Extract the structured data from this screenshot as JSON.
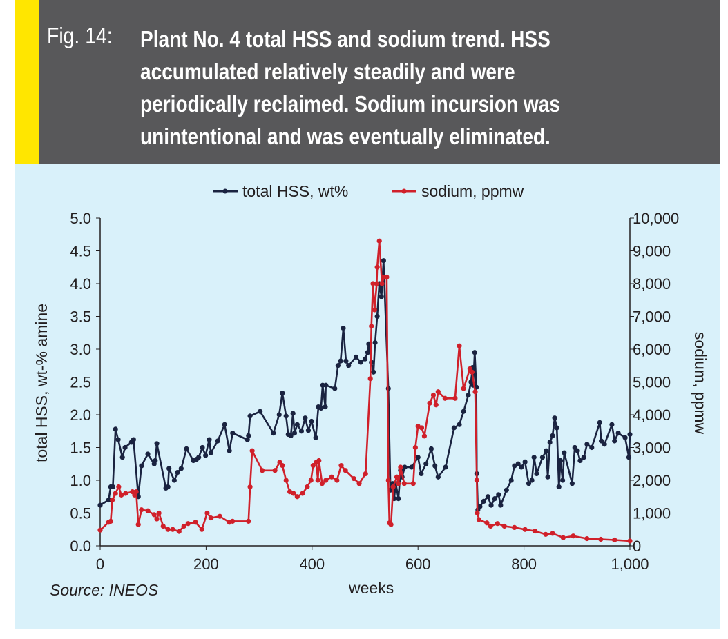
{
  "header": {
    "fig_label": "Fig. 14:",
    "caption_lines": [
      "Plant No. 4 total HSS and sodium trend. HSS",
      "accumulated relatively steadily and were",
      "periodically reclaimed. Sodium incursion was",
      "unintentional and was eventually eliminated."
    ]
  },
  "source": "Source: INEOS",
  "colors": {
    "hss": "#1a2340",
    "sodium": "#d0202a",
    "panel": "#d9f1fa",
    "header": "#58585a",
    "stripe": "#ffe600"
  },
  "chart_data": {
    "type": "line",
    "xlabel": "weeks",
    "ylabel": "total HSS, wt-% amine",
    "y2label": "sodium, ppmw",
    "xlim": [
      0,
      1000
    ],
    "ylim": [
      0,
      5
    ],
    "y2lim": [
      0,
      10000
    ],
    "xticks": [
      "0",
      "200",
      "400",
      "600",
      "800",
      "1,000"
    ],
    "yticks": [
      "0.0",
      "0.5",
      "1.0",
      "1.5",
      "2.0",
      "2.5",
      "3.0",
      "3.5",
      "4.0",
      "4.5",
      "5.0"
    ],
    "y2ticks": [
      "0",
      "1,000",
      "2,000",
      "3,000",
      "4,000",
      "5,000",
      "6,000",
      "7,000",
      "8,000",
      "9,000",
      "10,000"
    ],
    "legend_position": "top-center",
    "series": [
      {
        "name": "total HSS, wt%",
        "axis": "left",
        "color": "#1a2340",
        "points": [
          [
            0,
            0.62
          ],
          [
            16,
            0.7
          ],
          [
            20,
            0.9
          ],
          [
            24,
            0.9
          ],
          [
            29,
            1.78
          ],
          [
            34,
            1.62
          ],
          [
            42,
            1.35
          ],
          [
            47,
            1.5
          ],
          [
            59,
            1.58
          ],
          [
            63,
            1.62
          ],
          [
            72,
            0.75
          ],
          [
            78,
            1.22
          ],
          [
            90,
            1.4
          ],
          [
            102,
            1.25
          ],
          [
            104,
            1.3
          ],
          [
            107,
            1.56
          ],
          [
            124,
            0.88
          ],
          [
            128,
            0.9
          ],
          [
            130,
            1.18
          ],
          [
            140,
            1.0
          ],
          [
            146,
            1.12
          ],
          [
            153,
            1.18
          ],
          [
            163,
            1.48
          ],
          [
            176,
            1.3
          ],
          [
            182,
            1.32
          ],
          [
            186,
            1.35
          ],
          [
            193,
            1.5
          ],
          [
            199,
            1.38
          ],
          [
            206,
            1.62
          ],
          [
            209,
            1.42
          ],
          [
            222,
            1.6
          ],
          [
            235,
            1.85
          ],
          [
            244,
            1.45
          ],
          [
            250,
            1.72
          ],
          [
            278,
            1.62
          ],
          [
            280,
            1.68
          ],
          [
            283,
            1.98
          ],
          [
            302,
            2.05
          ],
          [
            327,
            1.72
          ],
          [
            338,
            2.0
          ],
          [
            344,
            2.33
          ],
          [
            351,
            1.98
          ],
          [
            355,
            1.7
          ],
          [
            360,
            1.68
          ],
          [
            364,
            2.02
          ],
          [
            367,
            1.72
          ],
          [
            372,
            1.85
          ],
          [
            380,
            1.75
          ],
          [
            387,
            1.95
          ],
          [
            393,
            1.76
          ],
          [
            399,
            1.9
          ],
          [
            407,
            1.65
          ],
          [
            412,
            2.12
          ],
          [
            417,
            2.1
          ],
          [
            420,
            2.45
          ],
          [
            425,
            2.12
          ],
          [
            426,
            2.45
          ],
          [
            443,
            2.4
          ],
          [
            449,
            2.75
          ],
          [
            454,
            2.82
          ],
          [
            459,
            3.32
          ],
          [
            464,
            2.82
          ],
          [
            469,
            2.75
          ],
          [
            483,
            2.88
          ],
          [
            492,
            2.8
          ],
          [
            500,
            2.85
          ],
          [
            505,
            2.95
          ],
          [
            507,
            3.08
          ],
          [
            512,
            2.8
          ],
          [
            516,
            2.65
          ],
          [
            519,
            3.1
          ],
          [
            523,
            3.5
          ],
          [
            527,
            4.0
          ],
          [
            531,
            3.8
          ],
          [
            535,
            4.35
          ],
          [
            544,
            2.4
          ],
          [
            548,
            0.85
          ],
          [
            552,
            0.95
          ],
          [
            555,
            0.72
          ],
          [
            558,
            0.95
          ],
          [
            563,
            0.72
          ],
          [
            567,
            1.15
          ],
          [
            570,
            1.05
          ],
          [
            575,
            1.2
          ],
          [
            588,
            1.2
          ],
          [
            600,
            1.35
          ],
          [
            606,
            1.1
          ],
          [
            615,
            1.25
          ],
          [
            625,
            1.48
          ],
          [
            632,
            1.22
          ],
          [
            638,
            1.05
          ],
          [
            652,
            1.2
          ],
          [
            668,
            1.8
          ],
          [
            678,
            1.85
          ],
          [
            686,
            2.05
          ],
          [
            695,
            2.3
          ],
          [
            700,
            2.5
          ],
          [
            703,
            2.72
          ],
          [
            704,
            2.45
          ],
          [
            707,
            2.95
          ],
          [
            710,
            2.42
          ],
          [
            711,
            1.1
          ],
          [
            713,
            0.55
          ],
          [
            717,
            0.6
          ],
          [
            724,
            0.68
          ],
          [
            732,
            0.75
          ],
          [
            738,
            0.62
          ],
          [
            745,
            0.72
          ],
          [
            752,
            0.78
          ],
          [
            756,
            0.62
          ],
          [
            767,
            0.85
          ],
          [
            776,
            1.0
          ],
          [
            782,
            1.22
          ],
          [
            789,
            1.25
          ],
          [
            795,
            1.2
          ],
          [
            802,
            1.28
          ],
          [
            809,
            0.95
          ],
          [
            815,
            1.0
          ],
          [
            819,
            1.35
          ],
          [
            824,
            1.1
          ],
          [
            835,
            1.35
          ],
          [
            842,
            1.45
          ],
          [
            845,
            1.05
          ],
          [
            849,
            1.58
          ],
          [
            854,
            1.68
          ],
          [
            858,
            1.95
          ],
          [
            862,
            1.8
          ],
          [
            866,
            0.9
          ],
          [
            869,
            1.3
          ],
          [
            873,
            1.0
          ],
          [
            876,
            1.42
          ],
          [
            891,
            0.95
          ],
          [
            896,
            1.5
          ],
          [
            901,
            1.45
          ],
          [
            906,
            1.3
          ],
          [
            913,
            1.35
          ],
          [
            919,
            1.55
          ],
          [
            928,
            1.5
          ],
          [
            943,
            1.88
          ],
          [
            946,
            1.6
          ],
          [
            952,
            1.55
          ],
          [
            966,
            1.85
          ],
          [
            971,
            1.6
          ],
          [
            978,
            1.72
          ],
          [
            991,
            1.65
          ],
          [
            998,
            1.35
          ],
          [
            1000,
            1.7
          ]
        ]
      },
      {
        "name": "sodium, ppmw",
        "axis": "right",
        "color": "#d0202a",
        "points": [
          [
            0,
            480
          ],
          [
            16,
            720
          ],
          [
            20,
            750
          ],
          [
            23,
            1400
          ],
          [
            29,
            1600
          ],
          [
            35,
            1800
          ],
          [
            40,
            1550
          ],
          [
            48,
            1600
          ],
          [
            61,
            1650
          ],
          [
            65,
            1550
          ],
          [
            68,
            1650
          ],
          [
            72,
            650
          ],
          [
            78,
            1100
          ],
          [
            90,
            1070
          ],
          [
            102,
            950
          ],
          [
            107,
            820
          ],
          [
            111,
            1000
          ],
          [
            119,
            600
          ],
          [
            128,
            500
          ],
          [
            137,
            500
          ],
          [
            149,
            440
          ],
          [
            158,
            600
          ],
          [
            166,
            680
          ],
          [
            180,
            720
          ],
          [
            192,
            500
          ],
          [
            202,
            1000
          ],
          [
            209,
            850
          ],
          [
            226,
            900
          ],
          [
            244,
            720
          ],
          [
            250,
            750
          ],
          [
            280,
            750
          ],
          [
            283,
            1800
          ],
          [
            287,
            2900
          ],
          [
            306,
            2300
          ],
          [
            330,
            2300
          ],
          [
            339,
            2550
          ],
          [
            344,
            2450
          ],
          [
            351,
            2000
          ],
          [
            358,
            1650
          ],
          [
            365,
            1600
          ],
          [
            372,
            1500
          ],
          [
            382,
            1600
          ],
          [
            391,
            1800
          ],
          [
            398,
            2000
          ],
          [
            402,
            2450
          ],
          [
            408,
            2550
          ],
          [
            411,
            2000
          ],
          [
            413,
            2600
          ],
          [
            419,
            1900
          ],
          [
            426,
            2000
          ],
          [
            437,
            2100
          ],
          [
            447,
            2000
          ],
          [
            455,
            2450
          ],
          [
            463,
            2300
          ],
          [
            479,
            2050
          ],
          [
            489,
            1900
          ],
          [
            501,
            2200
          ],
          [
            510,
            5100
          ],
          [
            512,
            6700
          ],
          [
            515,
            8000
          ],
          [
            518,
            7200
          ],
          [
            522,
            8000
          ],
          [
            523,
            8500
          ],
          [
            527,
            9300
          ],
          [
            532,
            8000
          ],
          [
            536,
            8200
          ],
          [
            541,
            8200
          ],
          [
            544,
            2000
          ],
          [
            546,
            700
          ],
          [
            549,
            650
          ],
          [
            553,
            1800
          ],
          [
            560,
            2100
          ],
          [
            563,
            1900
          ],
          [
            567,
            2400
          ],
          [
            574,
            1900
          ],
          [
            591,
            1900
          ],
          [
            595,
            3000
          ],
          [
            600,
            3650
          ],
          [
            607,
            3600
          ],
          [
            612,
            3350
          ],
          [
            622,
            4350
          ],
          [
            629,
            4600
          ],
          [
            634,
            4300
          ],
          [
            638,
            4700
          ],
          [
            651,
            4500
          ],
          [
            670,
            4500
          ],
          [
            678,
            6100
          ],
          [
            686,
            4800
          ],
          [
            698,
            5400
          ],
          [
            702,
            5300
          ],
          [
            708,
            4700
          ],
          [
            711,
            2000
          ],
          [
            712,
            1000
          ],
          [
            715,
            800
          ],
          [
            730,
            700
          ],
          [
            737,
            600
          ],
          [
            750,
            680
          ],
          [
            763,
            600
          ],
          [
            782,
            560
          ],
          [
            802,
            500
          ],
          [
            821,
            450
          ],
          [
            841,
            350
          ],
          [
            854,
            380
          ],
          [
            874,
            250
          ],
          [
            893,
            300
          ],
          [
            919,
            220
          ],
          [
            945,
            200
          ],
          [
            971,
            180
          ],
          [
            1000,
            150
          ]
        ]
      }
    ]
  }
}
